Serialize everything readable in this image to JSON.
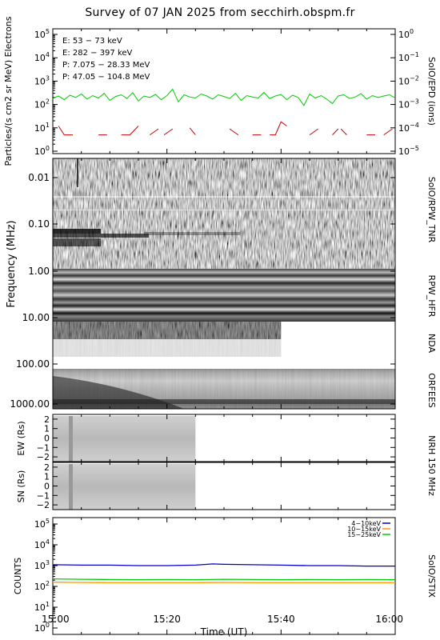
{
  "title": "Survey of 07 JAN 2025 from secchirh.obspm.fr",
  "x_axis": {
    "label": "Time (UT)",
    "ticks": [
      "15:00",
      "15:20",
      "15:40",
      "16:00"
    ]
  },
  "chart_data": [
    {
      "name": "SoIO/EPD",
      "type": "line",
      "ylabel": "Particles/(s cm2 sr MeV) Electrons",
      "right_label": "SoIO/EPD (ions)",
      "left_scale": "log",
      "ylim": [
        1,
        100000
      ],
      "left_ticks": [
        "10^0",
        "10^1",
        "10^2",
        "10^3",
        "10^4",
        "10^5"
      ],
      "right_ticks": [
        "10^-5",
        "10^-4",
        "10^-3",
        "10^-2",
        "10^-1",
        "10^0"
      ],
      "grid": false,
      "legend": [
        {
          "text": "E: 53 − 73 keV",
          "color": "#00cc00"
        },
        {
          "text": "E: 282 − 397 keV",
          "color": "#cc0000"
        },
        {
          "text": "P: 7.075 − 28.33 MeV",
          "color": "#000000"
        },
        {
          "text": "P: 47.05 − 104.8 MeV",
          "color": "#0000cc"
        }
      ],
      "series": [
        {
          "name": "E: 53 − 73 keV",
          "color": "#00cc00",
          "t_minutes": [
            0,
            1,
            2,
            3,
            4,
            5,
            6,
            7,
            8,
            9,
            10,
            11,
            12,
            13,
            14,
            15,
            16,
            17,
            18,
            19,
            20,
            21,
            22,
            23,
            24,
            25,
            26,
            27,
            28,
            29,
            30,
            31,
            32,
            33,
            34,
            35,
            36,
            37,
            38,
            39,
            40,
            41,
            42,
            43,
            44,
            45,
            46,
            47,
            48,
            49,
            50,
            51,
            52,
            53,
            54,
            55,
            56,
            57,
            58,
            59,
            60
          ],
          "values": [
            180,
            230,
            160,
            250,
            200,
            280,
            170,
            240,
            190,
            300,
            150,
            220,
            260,
            180,
            320,
            140,
            230,
            200,
            270,
            160,
            240,
            450,
            130,
            260,
            210,
            190,
            280,
            230,
            170,
            260,
            220,
            180,
            300,
            150,
            240,
            210,
            190,
            330,
            180,
            230,
            270,
            160,
            250,
            200,
            90,
            280,
            190,
            240,
            170,
            110,
            230,
            260,
            180,
            210,
            290,
            170,
            240,
            200,
            230,
            260,
            190
          ]
        },
        {
          "name": "E: 282 − 397 keV",
          "color": "#cc0000",
          "segments": [
            {
              "t": [
                1,
                2,
                3.5
              ],
              "values": [
                12,
                5,
                5
              ]
            },
            {
              "t": [
                8,
                9.5
              ],
              "values": [
                5,
                5
              ]
            },
            {
              "t": [
                12,
                13.5,
                15
              ],
              "values": [
                5,
                5,
                12
              ]
            },
            {
              "t": [
                17,
                18.5
              ],
              "values": [
                5,
                9
              ]
            },
            {
              "t": [
                19.5,
                21
              ],
              "values": [
                5,
                9
              ]
            },
            {
              "t": [
                24,
                25
              ],
              "values": [
                10,
                5
              ]
            },
            {
              "t": [
                31,
                32.5
              ],
              "values": [
                9,
                5
              ]
            },
            {
              "t": [
                35,
                36.5
              ],
              "values": [
                5,
                5
              ]
            },
            {
              "t": [
                38,
                39,
                40,
                41
              ],
              "values": [
                5,
                5,
                18,
                12
              ]
            },
            {
              "t": [
                45,
                46.5
              ],
              "values": [
                5,
                9
              ]
            },
            {
              "t": [
                49,
                50
              ],
              "values": [
                5,
                9
              ]
            },
            {
              "t": [
                50.5,
                51.5
              ],
              "values": [
                9,
                5
              ]
            },
            {
              "t": [
                55,
                56.5
              ],
              "values": [
                5,
                5
              ]
            },
            {
              "t": [
                58,
                59.5
              ],
              "values": [
                5,
                9
              ]
            }
          ]
        }
      ]
    },
    {
      "name": "SoIO/RPW_TNR",
      "type": "heatmap",
      "ylabel": "Frequency (MHz)",
      "right_label": "SoIO/RPW_TNR",
      "y_scale": "log",
      "ylim": [
        0.004,
        1.0
      ],
      "tick_labels": [
        "0.01",
        "0.10",
        "1.00"
      ]
    },
    {
      "name": "RPW_HFR",
      "type": "heatmap",
      "right_label": "RPW_HFR",
      "ylim": [
        1.0,
        10.0
      ],
      "tick_labels": [
        "10.00"
      ]
    },
    {
      "name": "NDA",
      "type": "heatmap",
      "right_label": "NDA",
      "ylim": [
        10.0,
        100.0
      ],
      "data_end_minutes": 40
    },
    {
      "name": "ORFEES",
      "type": "heatmap",
      "right_label": "ORFEES",
      "ylim": [
        100.0,
        1000.0
      ],
      "tick_labels": [
        "100.00",
        "1000.00"
      ]
    },
    {
      "name": "NRH 150 MHz EW",
      "type": "heatmap",
      "ylabel": "EW (Rs)",
      "right_label": "NRH 150 MHz",
      "ylim": [
        -2.5,
        2.5
      ],
      "tick_labels": [
        "2",
        "1",
        "0",
        "−1",
        "−2"
      ],
      "data_end_minutes": 25
    },
    {
      "name": "NRH 150 MHz SN",
      "type": "heatmap",
      "ylabel": "SN (Rs)",
      "ylim": [
        -2.5,
        2.5
      ],
      "tick_labels": [
        "2",
        "1",
        "0",
        "−1",
        "−2"
      ],
      "data_end_minutes": 25
    },
    {
      "name": "SoIO/STIX",
      "type": "line",
      "ylabel": "COUNTS",
      "right_label": "SoIO/STIX",
      "y_scale": "log",
      "ylim": [
        1,
        100000
      ],
      "left_ticks": [
        "10^0",
        "10^1",
        "10^2",
        "10^3",
        "10^4",
        "10^5"
      ],
      "legend": [
        {
          "text": "4−10keV",
          "color": "#0000cc"
        },
        {
          "text": "10−15keV",
          "color": "#ff9900"
        },
        {
          "text": "15−25keV",
          "color": "#00cc00"
        }
      ],
      "series": [
        {
          "name": "4−10keV",
          "color": "#0000cc",
          "t_minutes": [
            0,
            5,
            10,
            15,
            20,
            25,
            28,
            30,
            35,
            40,
            45,
            50,
            55,
            60
          ],
          "values": [
            1100,
            1050,
            1050,
            1000,
            1000,
            1050,
            1200,
            1150,
            1100,
            1050,
            1000,
            1000,
            950,
            950
          ]
        },
        {
          "name": "10−15keV",
          "color": "#ff9900",
          "t_minutes": [
            0,
            5,
            10,
            15,
            20,
            25,
            30,
            35,
            40,
            45,
            50,
            55,
            60
          ],
          "values": [
            160,
            155,
            150,
            150,
            150,
            150,
            155,
            150,
            150,
            150,
            150,
            150,
            150
          ]
        },
        {
          "name": "15−25keV",
          "color": "#00cc00",
          "t_minutes": [
            0,
            5,
            10,
            15,
            20,
            25,
            30,
            35,
            40,
            45,
            50,
            55,
            60
          ],
          "values": [
            230,
            220,
            215,
            210,
            215,
            210,
            220,
            215,
            210,
            215,
            210,
            215,
            210
          ]
        }
      ]
    }
  ]
}
